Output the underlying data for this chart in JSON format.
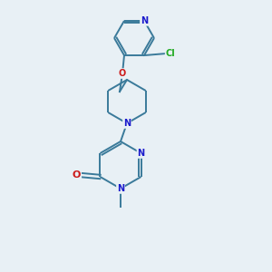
{
  "background_color": "#e8f0f5",
  "bond_color": "#3a7a9a",
  "atom_colors": {
    "N": "#1a1acc",
    "O": "#cc1a1a",
    "Cl": "#22aa22",
    "C": "#3a7a9a"
  },
  "figsize": [
    3.0,
    3.0
  ],
  "dpi": 100
}
